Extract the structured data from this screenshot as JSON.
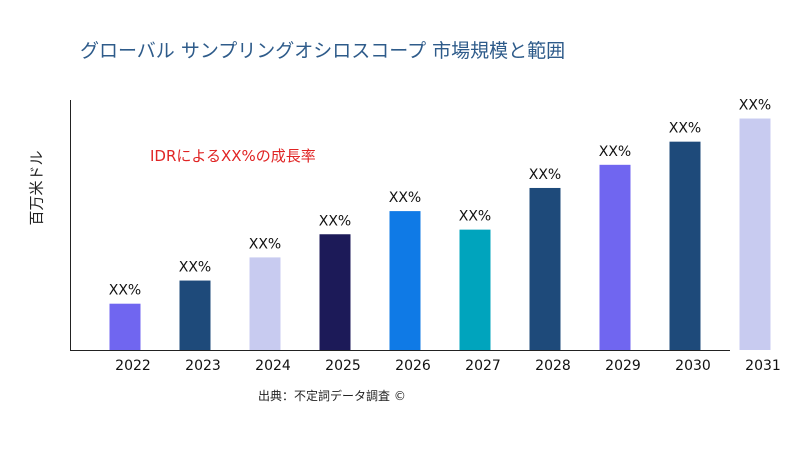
{
  "chart_data": {
    "type": "bar",
    "title": "グローバル サンプリングオシロスコープ 市場規模と範囲",
    "ylabel": "百万米ドル",
    "xlabel": "",
    "categories": [
      "2022",
      "2023",
      "2024",
      "2025",
      "2026",
      "2027",
      "2028",
      "2029",
      "2030",
      "2031"
    ],
    "values": [
      2,
      3,
      4,
      5,
      6,
      5.2,
      7,
      8,
      9,
      10
    ],
    "data_labels": [
      "XX%",
      "XX%",
      "XX%",
      "XX%",
      "XX%",
      "XX%",
      "XX%",
      "XX%",
      "XX%",
      "XX%"
    ],
    "bar_colors": [
      "#7066f0",
      "#1e4a7a",
      "#c8cbf0",
      "#1c1a58",
      "#0f7ae6",
      "#00a4bd",
      "#1e4a7a",
      "#7066f0",
      "#1e4a7a",
      "#c8cbf0"
    ],
    "ylim": [
      0,
      10.8
    ],
    "grid": false,
    "legend": "none",
    "annotation": "IDRによるXX%の成長率",
    "annotation_color": "#e02424"
  },
  "source": "出典：不定詞データ調査 ©"
}
